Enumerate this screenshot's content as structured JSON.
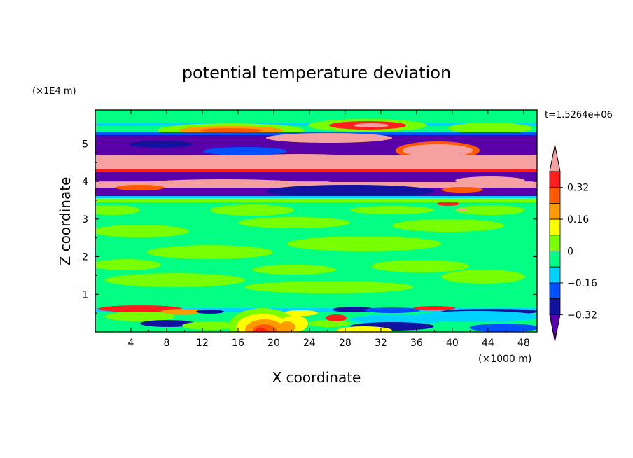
{
  "chart_data": {
    "type": "heatmap",
    "title": "potential temperature deviation",
    "xlabel": "X coordinate",
    "ylabel": "Z coordinate",
    "x_unit": "(×1000 m)",
    "y_unit": "(×1E4 m)",
    "time_label": "t=1.5264e+06",
    "xlim": [
      0,
      49.5
    ],
    "ylim": [
      0,
      5.9
    ],
    "x_ticks": [
      4,
      8,
      12,
      16,
      20,
      24,
      28,
      32,
      36,
      40,
      44,
      48
    ],
    "y_ticks": [
      1,
      2,
      3,
      4,
      5
    ],
    "colorbar": {
      "labels": [
        "0.32",
        "0.16",
        "0",
        "-0.16",
        "-0.32"
      ],
      "label_values": [
        0.32,
        0.16,
        0,
        -0.16,
        -0.32
      ],
      "levels": [
        -0.4,
        -0.32,
        -0.24,
        -0.16,
        -0.08,
        0,
        0.08,
        0.16,
        0.24,
        0.32,
        0.4
      ],
      "colors": [
        "#5a00a8",
        "#12129e",
        "#0050ff",
        "#00d2ff",
        "#00ff82",
        "#78ff00",
        "#ffff00",
        "#ff9a00",
        "#ff5a00",
        "#ff1e1e",
        "#f5a0a0"
      ]
    },
    "regions": [
      {
        "z_range": [
          0.0,
          0.6
        ],
        "dominant_level": "0",
        "note": "warm plume near x=18-22 (up to 0.4), cold patches near x=28-40"
      },
      {
        "z_range": [
          0.6,
          3.6
        ],
        "dominant_level": "0 to 0.08",
        "note": "mostly near-zero deviation"
      },
      {
        "z_range": [
          3.6,
          4.0
        ],
        "dominant_level": "-0.4",
        "note": "cold band"
      },
      {
        "z_range": [
          4.0,
          4.5
        ],
        "dominant_level": "0.4",
        "note": "warm band"
      },
      {
        "z_range": [
          4.5,
          5.3
        ],
        "dominant_level": "-0.4",
        "note": "alternating cold/warm bands"
      },
      {
        "z_range": [
          5.3,
          5.9
        ],
        "dominant_level": "0 to 0.32",
        "note": "warm patches near top"
      }
    ]
  }
}
